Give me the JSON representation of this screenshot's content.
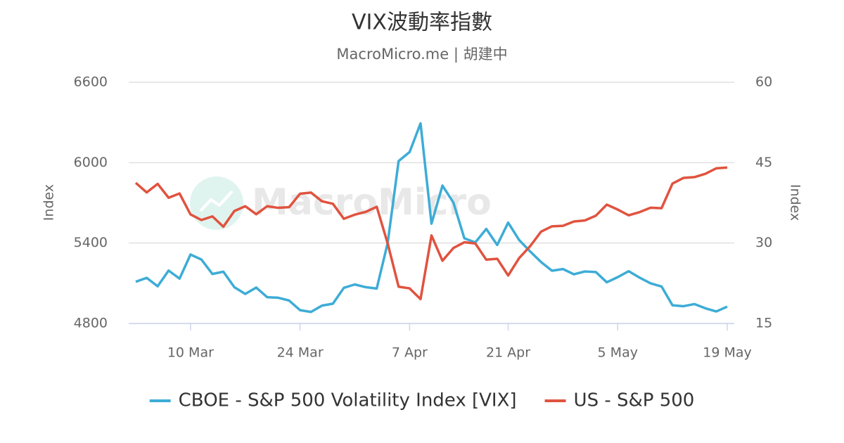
{
  "chart_data": {
    "type": "line",
    "title": "VIX波動率指數",
    "subtitle": "MacroMicro.me | 胡建中",
    "watermark": "MacroMicro",
    "y_label": "Index",
    "y2_label": "Index",
    "categories": [
      null,
      null,
      null,
      null,
      null,
      "10 Mar",
      null,
      null,
      null,
      null,
      null,
      null,
      null,
      null,
      null,
      "24 Mar",
      null,
      null,
      null,
      null,
      null,
      null,
      null,
      null,
      null,
      "7 Apr",
      null,
      null,
      null,
      null,
      null,
      null,
      null,
      null,
      "21 Apr",
      null,
      null,
      null,
      null,
      null,
      null,
      null,
      null,
      null,
      "5 May",
      null,
      null,
      null,
      null,
      null,
      null,
      null,
      null,
      null,
      "19 May"
    ],
    "series": [
      {
        "name": "CBOE - S&P 500 Volatility Index [VIX]",
        "color": "#3dacd6",
        "axis": "y2",
        "values": [
          22.78,
          23.51,
          21.93,
          24.87,
          23.37,
          27.86,
          26.92,
          24.23,
          24.66,
          21.77,
          20.51,
          21.7,
          19.9,
          19.8,
          19.28,
          17.48,
          17.15,
          18.33,
          18.69,
          21.65,
          22.28,
          21.77,
          21.51,
          30.02,
          45.31,
          46.98,
          52.33,
          33.62,
          40.72,
          37.56,
          30.89,
          30.12,
          32.64,
          29.65,
          33.82,
          30.57,
          28.45,
          26.47,
          24.84,
          25.15,
          24.17,
          24.7,
          24.6,
          22.68,
          23.64,
          24.76,
          23.55,
          22.48,
          21.9,
          18.39,
          18.22,
          18.62,
          17.83,
          17.24,
          18.14
        ]
      },
      {
        "name": "US - S&P 500",
        "color": "#e0533f",
        "values": [
          5849,
          5778,
          5842,
          5738,
          5770,
          5614,
          5572,
          5599,
          5522,
          5639,
          5675,
          5615,
          5675,
          5663,
          5668,
          5768,
          5777,
          5712,
          5693,
          5581,
          5612,
          5633,
          5671,
          5397,
          5074,
          5062,
          4982,
          5457,
          5268,
          5363,
          5406,
          5397,
          5276,
          5283,
          5158,
          5288,
          5376,
          5485,
          5525,
          5529,
          5561,
          5569,
          5604,
          5687,
          5650,
          5607,
          5631,
          5664,
          5660,
          5844,
          5886,
          5892,
          5917,
          5958,
          5964
        ]
      }
    ],
    "ylim": [
      4800,
      6600
    ],
    "yticks": [
      4800,
      5400,
      6000,
      6600
    ],
    "y2lim": [
      15,
      60
    ],
    "y2ticks": [
      15,
      30,
      45,
      60
    ],
    "grid": true,
    "legend": "bottom"
  }
}
